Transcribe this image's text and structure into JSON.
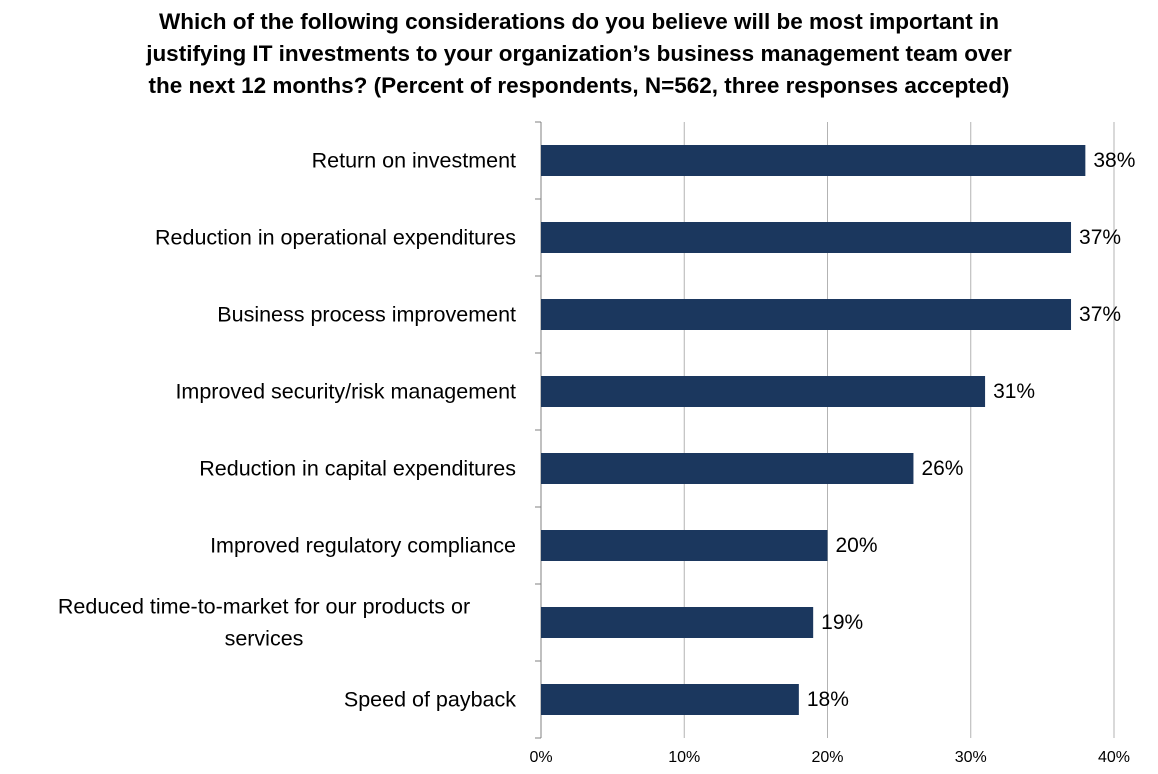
{
  "title_lines": [
    "Which of the following considerations do you believe will be most important in",
    "justifying IT investments to your organization’s business management team over",
    "the next 12 months? (Percent of respondents, N=562, three responses accepted)"
  ],
  "chart_data": {
    "type": "bar",
    "orientation": "horizontal",
    "categories": [
      "Return on investment",
      "Reduction in operational expenditures",
      "Business process improvement",
      "Improved security/risk management",
      "Reduction in capital expenditures",
      "Improved regulatory compliance",
      "Reduced time-to-market for our products or services",
      "Speed of payback"
    ],
    "category_lines": [
      [
        "Return on investment"
      ],
      [
        "Reduction in operational expenditures"
      ],
      [
        "Business process improvement"
      ],
      [
        "Improved security/risk management"
      ],
      [
        "Reduction in capital expenditures"
      ],
      [
        "Improved regulatory compliance"
      ],
      [
        "Reduced time-to-market for our products or",
        "services"
      ],
      [
        "Speed of payback"
      ]
    ],
    "values": [
      38,
      37,
      37,
      31,
      26,
      20,
      19,
      18
    ],
    "value_labels": [
      "38%",
      "37%",
      "37%",
      "31%",
      "26%",
      "20%",
      "19%",
      "18%"
    ],
    "xlim": [
      0,
      40
    ],
    "xticks": [
      0,
      10,
      20,
      30,
      40
    ],
    "xtick_labels": [
      "0%",
      "10%",
      "20%",
      "30%",
      "40%"
    ],
    "grid": true,
    "bar_color": "#1b375e",
    "grid_color": "#b3b3b3"
  }
}
